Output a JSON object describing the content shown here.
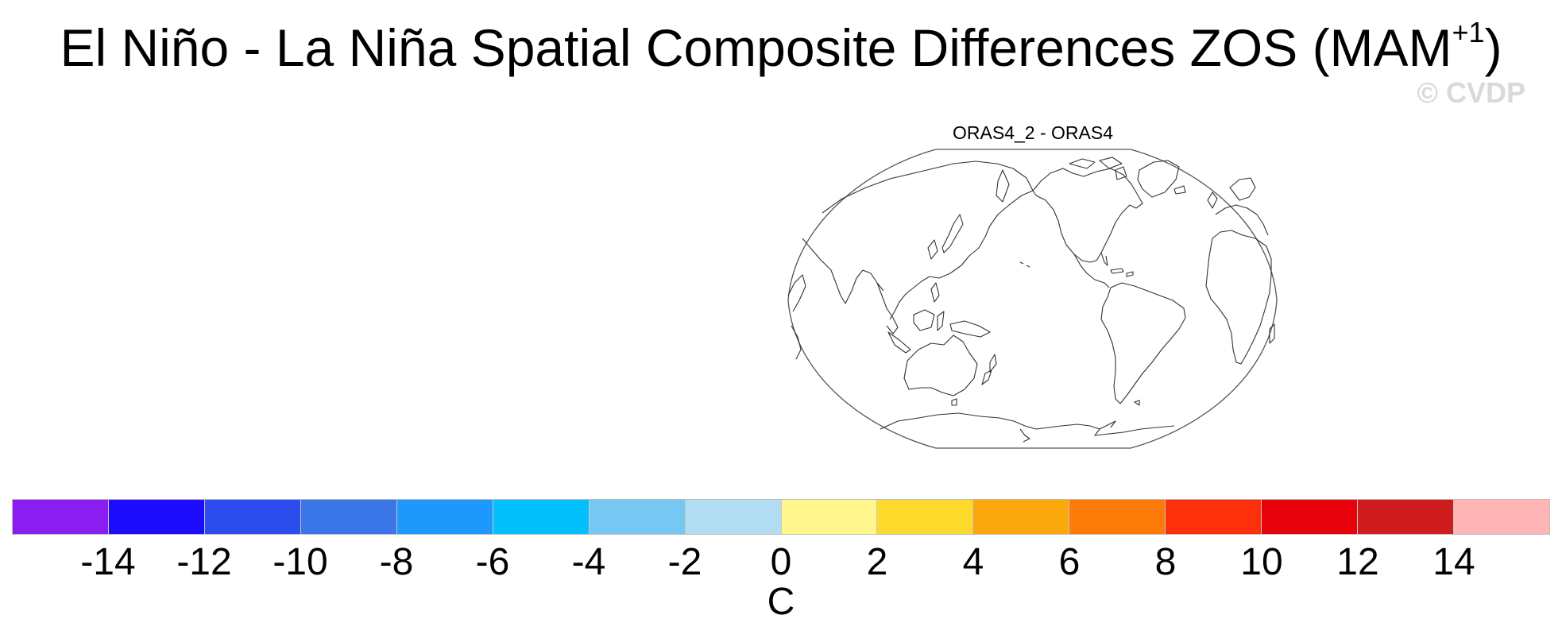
{
  "title": {
    "main": "El Niño - La Niña Spatial Composite Differences ZOS (MAM",
    "superscript": "+1",
    "close": ")"
  },
  "watermark": "© CVDP",
  "panel": {
    "title": "ORAS4_2 - ORAS4",
    "projection": "Robinson, centered on Pacific (approx. 200°E)",
    "field": "empty (no shaded data)"
  },
  "colorbar": {
    "unit": "C",
    "levels": [
      "-14",
      "-12",
      "-10",
      "-8",
      "-6",
      "-4",
      "-2",
      "0",
      "2",
      "4",
      "6",
      "8",
      "10",
      "12",
      "14"
    ],
    "colors": [
      "#8a1ef0",
      "#1c0bfd",
      "#2d4ced",
      "#3a76e8",
      "#1e98fb",
      "#01c0fc",
      "#76c8f2",
      "#b2dcf2",
      "#fff78e",
      "#fdd92c",
      "#fba80c",
      "#fc7b08",
      "#fc310b",
      "#e8020b",
      "#ce1c1f",
      "#ffb4b6"
    ]
  }
}
